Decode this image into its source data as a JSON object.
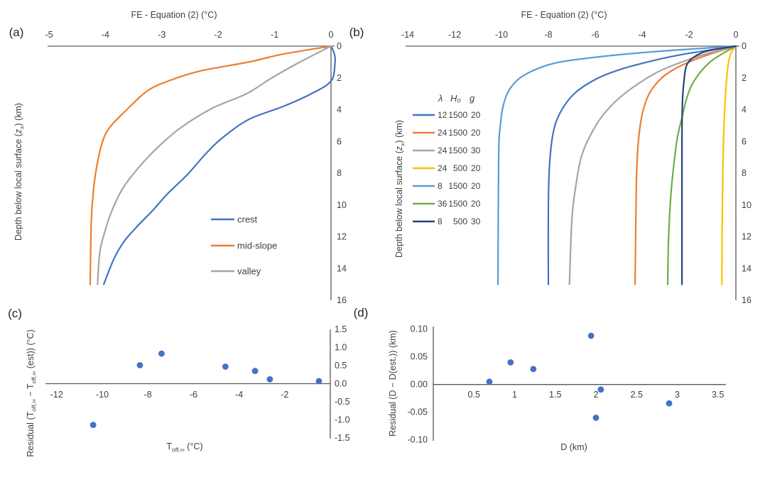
{
  "colors": {
    "axis": "#595959",
    "text": "#404040",
    "marker": "#4472C4"
  },
  "chart_data": [
    {
      "id": "a",
      "type": "line",
      "panel_label": "(a)",
      "title": "FE - Equation (2) (°C)",
      "xlabel": "FE - Equation (2) (°C)",
      "ylabel": "Depth below local surface (zx) (km)",
      "ylabel_html": "Depth below local surface (<i>z<sub>x</sub></i>) (km)",
      "xlim": [
        -5,
        0
      ],
      "ylim": [
        0,
        16
      ],
      "grid": false,
      "x_axis_position": "top",
      "y_axis_position": "right",
      "legend_position": "inside-lower-right",
      "xticks": [
        -5,
        -4,
        -3,
        -2,
        -1,
        0
      ],
      "xtick_labels": [
        "-5",
        "-4",
        "-3",
        "-2",
        "-1",
        "0"
      ],
      "yticks": [
        0,
        2,
        4,
        6,
        8,
        10,
        12,
        14,
        16
      ],
      "ytick_labels": [
        "0",
        "2",
        "4",
        "6",
        "8",
        "10",
        "12",
        "14",
        "16"
      ],
      "series": [
        {
          "name": "crest",
          "color": "#4472C4",
          "points": [
            [
              0,
              0
            ],
            [
              0.06,
              0.5
            ],
            [
              0.07,
              1.1
            ],
            [
              0,
              2.2
            ],
            [
              -0.35,
              3
            ],
            [
              -0.85,
              3.8
            ],
            [
              -1.45,
              4.6
            ],
            [
              -1.9,
              5.7
            ],
            [
              -2.2,
              6.7
            ],
            [
              -2.55,
              8.1
            ],
            [
              -2.9,
              9.3
            ],
            [
              -3.15,
              10.3
            ],
            [
              -3.45,
              11.4
            ],
            [
              -3.67,
              12.3
            ],
            [
              -3.85,
              13.4
            ],
            [
              -4.03,
              15
            ]
          ]
        },
        {
          "name": "mid-slope",
          "color": "#ED7D31",
          "points": [
            [
              0,
              0
            ],
            [
              -0.85,
              0.5
            ],
            [
              -1.46,
              1
            ],
            [
              -2.3,
              1.55
            ],
            [
              -2.81,
              2.1
            ],
            [
              -3.25,
              2.8
            ],
            [
              -3.65,
              4.1
            ],
            [
              -3.92,
              5.1
            ],
            [
              -4.05,
              6
            ],
            [
              -4.15,
              7.5
            ],
            [
              -4.21,
              9
            ],
            [
              -4.25,
              11
            ],
            [
              -4.27,
              15
            ]
          ]
        },
        {
          "name": "valley",
          "color": "#A5A5A5",
          "points": [
            [
              0,
              0
            ],
            [
              -0.55,
              1
            ],
            [
              -1.05,
              2
            ],
            [
              -1.5,
              3
            ],
            [
              -2.1,
              3.9
            ],
            [
              -2.65,
              5.1
            ],
            [
              -3.05,
              6.3
            ],
            [
              -3.4,
              7.6
            ],
            [
              -3.7,
              9
            ],
            [
              -3.9,
              10.5
            ],
            [
              -4.02,
              11.8
            ],
            [
              -4.1,
              13
            ],
            [
              -4.14,
              15
            ]
          ]
        }
      ]
    },
    {
      "id": "b",
      "type": "line",
      "panel_label": "(b)",
      "title": "FE - Equation (2) (°C)",
      "xlabel": "FE - Equation (2) (°C)",
      "ylabel": "Depth below local surface (zx) (km)",
      "ylabel_html": "Depth below local surface (<i>z<sub>x</sub></i>) (km)",
      "xlim": [
        -14,
        0
      ],
      "ylim": [
        0,
        16
      ],
      "grid": false,
      "x_axis_position": "top",
      "y_axis_position": "right",
      "legend_position": "inside-upper-left",
      "legend_header": [
        "λ",
        "H₀",
        "g"
      ],
      "xticks": [
        -14,
        -12,
        -10,
        -8,
        -6,
        -4,
        -2,
        0
      ],
      "xtick_labels": [
        "-14",
        "-12",
        "-10",
        "-8",
        "-6",
        "-4",
        "-2",
        "0"
      ],
      "yticks": [
        0,
        2,
        4,
        6,
        8,
        10,
        12,
        14,
        16
      ],
      "ytick_labels": [
        "0",
        "2",
        "4",
        "6",
        "8",
        "10",
        "12",
        "14",
        "16"
      ],
      "series": [
        {
          "name": "12 1500 20",
          "legend_cols": [
            "12",
            "1500",
            "20"
          ],
          "color": "#4472C4",
          "points": [
            [
              0,
              0
            ],
            [
              -2,
              0.45
            ],
            [
              -3.5,
              0.9
            ],
            [
              -5,
              1.5
            ],
            [
              -6,
              2.1
            ],
            [
              -6.9,
              3
            ],
            [
              -7.5,
              4.2
            ],
            [
              -7.8,
              5.5
            ],
            [
              -7.95,
              7.5
            ],
            [
              -8,
              10
            ],
            [
              -8,
              15
            ]
          ]
        },
        {
          "name": "24 1500 20",
          "legend_cols": [
            "24",
            "1500",
            "20"
          ],
          "color": "#ED7D31",
          "points": [
            [
              0,
              0
            ],
            [
              -1.1,
              0.5
            ],
            [
              -2,
              1
            ],
            [
              -2.8,
              1.6
            ],
            [
              -3.3,
              2.2
            ],
            [
              -3.7,
              3
            ],
            [
              -3.95,
              4
            ],
            [
              -4.1,
              5.2
            ],
            [
              -4.2,
              6.8
            ],
            [
              -4.25,
              9
            ],
            [
              -4.3,
              15
            ]
          ]
        },
        {
          "name": "24 1500 30",
          "legend_cols": [
            "24",
            "1500",
            "30"
          ],
          "color": "#A5A5A5",
          "points": [
            [
              0,
              0
            ],
            [
              -1.3,
              0.5
            ],
            [
              -2.4,
              1.05
            ],
            [
              -3.3,
              1.6
            ],
            [
              -4.2,
              2.4
            ],
            [
              -5,
              3.3
            ],
            [
              -5.7,
              4.4
            ],
            [
              -6.2,
              5.6
            ],
            [
              -6.6,
              7
            ],
            [
              -6.85,
              9
            ],
            [
              -7,
              11
            ],
            [
              -7.1,
              15
            ]
          ]
        },
        {
          "name": "24 500 20",
          "legend_cols": [
            "24",
            "500",
            "20"
          ],
          "color": "#FFC000",
          "points": [
            [
              0,
              0
            ],
            [
              -0.2,
              0.4
            ],
            [
              -0.31,
              1
            ],
            [
              -0.39,
              2
            ],
            [
              -0.46,
              3.5
            ],
            [
              -0.52,
              5.5
            ],
            [
              -0.55,
              7.5
            ],
            [
              -0.58,
              10.5
            ],
            [
              -0.6,
              15
            ]
          ]
        },
        {
          "name": "8 1500 20",
          "legend_cols": [
            "8",
            "1500",
            "20"
          ],
          "color": "#5B9BD5",
          "points": [
            [
              0,
              0
            ],
            [
              -3.5,
              0.35
            ],
            [
              -6,
              0.7
            ],
            [
              -7.8,
              1.1
            ],
            [
              -9,
              1.8
            ],
            [
              -9.6,
              2.6
            ],
            [
              -9.9,
              3.6
            ],
            [
              -10.05,
              5
            ],
            [
              -10.12,
              7
            ],
            [
              -10.15,
              15
            ]
          ]
        },
        {
          "name": "36 1500 20",
          "legend_cols": [
            "36",
            "1500",
            "20"
          ],
          "color": "#70AD47",
          "points": [
            [
              0,
              0
            ],
            [
              -0.6,
              0.5
            ],
            [
              -1.1,
              1
            ],
            [
              -1.55,
              1.7
            ],
            [
              -1.9,
              2.5
            ],
            [
              -2.12,
              3.4
            ],
            [
              -2.3,
              4.5
            ],
            [
              -2.5,
              5.8
            ],
            [
              -2.65,
              7.5
            ],
            [
              -2.78,
              9.5
            ],
            [
              -2.87,
              12
            ],
            [
              -2.91,
              15
            ]
          ]
        },
        {
          "name": "8 500 30",
          "legend_cols": [
            "8",
            "500",
            "30"
          ],
          "color": "#264478",
          "points": [
            [
              0,
              0
            ],
            [
              -1.2,
              0.3
            ],
            [
              -1.8,
              0.7
            ],
            [
              -2.1,
              1.2
            ],
            [
              -2.2,
              2
            ],
            [
              -2.28,
              3.5
            ],
            [
              -2.3,
              6
            ],
            [
              -2.3,
              10
            ],
            [
              -2.3,
              15
            ]
          ]
        }
      ]
    },
    {
      "id": "c",
      "type": "scatter",
      "panel_label": "(c)",
      "xlabel": "T off,∞ (°C)",
      "xlabel_html": "T<sub>off,∞</sub> (°C)",
      "ylabel": "Residual (T off,∞ − T off,∞ (est)) (°C)",
      "ylabel_html": "Residual (T<sub>off,∞</sub> − T<sub>off,∞</sub> (est)) (°C)",
      "xlim": [
        -12,
        0
      ],
      "ylim": [
        -1.5,
        1.5
      ],
      "grid": false,
      "x_axis_position": "zero-line",
      "y_axis_position": "right",
      "marker_color": "#4472C4",
      "xticks": [
        -12,
        -10,
        -8,
        -6,
        -4,
        -2
      ],
      "xtick_labels": [
        "-12",
        "-10",
        "-8",
        "-6",
        "-4",
        "-2"
      ],
      "yticks": [
        1.5,
        1.0,
        0.5,
        0.0,
        -0.5,
        -1.0,
        -1.5
      ],
      "ytick_labels": [
        "1.5",
        "1.0",
        "0.5",
        "0.0",
        "-0.5",
        "-1.0",
        "-1.5"
      ],
      "points": [
        [
          -10.4,
          -1.14
        ],
        [
          -8.35,
          0.51
        ],
        [
          -7.4,
          0.83
        ],
        [
          -4.6,
          0.47
        ],
        [
          -3.3,
          0.35
        ],
        [
          -2.65,
          0.12
        ],
        [
          -0.5,
          0.07
        ]
      ]
    },
    {
      "id": "d",
      "type": "scatter",
      "panel_label": "(d)",
      "xlabel": "D (km)",
      "xlabel_html": "D (km)",
      "ylabel": "Residual (D − D(est.)) (km)",
      "ylabel_html": "Residual (D − D(est.)) (km)",
      "xlim": [
        0,
        3.5
      ],
      "ylim": [
        -0.1,
        0.1
      ],
      "grid": false,
      "x_axis_position": "zero-line",
      "y_axis_position": "left",
      "marker_color": "#4472C4",
      "xticks": [
        0.5,
        1,
        1.5,
        2,
        2.5,
        3,
        3.5
      ],
      "xtick_labels": [
        "0.5",
        "1",
        "1.5",
        "2",
        "2.5",
        "3",
        "3.5"
      ],
      "yticks": [
        0.1,
        0.05,
        0.0,
        -0.05,
        -0.1
      ],
      "ytick_labels": [
        "0.10",
        "0.05",
        "0.00",
        "-0.05",
        "-0.10"
      ],
      "points": [
        [
          0.69,
          0.005
        ],
        [
          0.95,
          0.04
        ],
        [
          1.23,
          0.028
        ],
        [
          1.94,
          0.088
        ],
        [
          2.06,
          -0.009
        ],
        [
          2.0,
          -0.06
        ],
        [
          2.9,
          -0.034
        ]
      ]
    }
  ]
}
